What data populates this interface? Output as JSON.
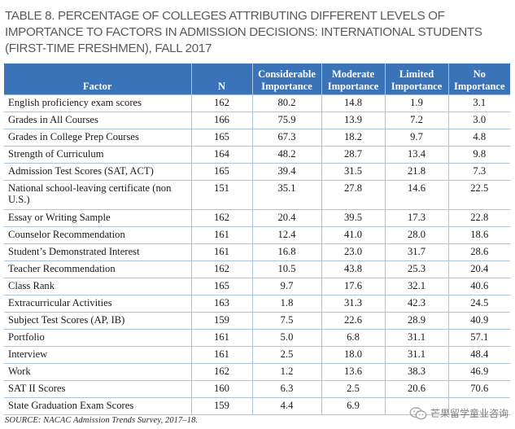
{
  "title": "TABLE 8. PERCENTAGE OF COLLEGES ATTRIBUTING DIFFERENT LEVELS OF IMPORTANCE TO FACTORS IN ADMISSION DECISIONS: INTERNATIONAL STUDENTS (FIRST-TIME FRESHMEN), FALL 2017",
  "colors": {
    "header_bg": "#3a73b8",
    "grid": "#a9c3e0"
  },
  "headers": {
    "factor": "Factor",
    "n": "N",
    "considerable": "Considerable Importance",
    "moderate": "Moderate Importance",
    "limited": "Limited Importance",
    "no": "No Importance"
  },
  "rows": [
    {
      "factor": "English proficiency exam scores",
      "n": "162",
      "considerable": "80.2",
      "moderate": "14.8",
      "limited": "1.9",
      "no": "3.1"
    },
    {
      "factor": "Grades in All Courses",
      "n": "166",
      "considerable": "75.9",
      "moderate": "13.9",
      "limited": "7.2",
      "no": "3.0"
    },
    {
      "factor": "Grades in College Prep Courses",
      "n": "165",
      "considerable": "67.3",
      "moderate": "18.2",
      "limited": "9.7",
      "no": "4.8"
    },
    {
      "factor": "Strength of Curriculum",
      "n": "164",
      "considerable": "48.2",
      "moderate": "28.7",
      "limited": "13.4",
      "no": "9.8"
    },
    {
      "factor": "Admission Test Scores (SAT, ACT)",
      "n": "165",
      "considerable": "39.4",
      "moderate": "31.5",
      "limited": "21.8",
      "no": "7.3"
    },
    {
      "factor": "National school-leaving certificate (non U.S.)",
      "n": "151",
      "considerable": "35.1",
      "moderate": "27.8",
      "limited": "14.6",
      "no": "22.5"
    },
    {
      "factor": "Essay or Writing Sample",
      "n": "162",
      "considerable": "20.4",
      "moderate": "39.5",
      "limited": "17.3",
      "no": "22.8"
    },
    {
      "factor": "Counselor Recommendation",
      "n": "161",
      "considerable": "12.4",
      "moderate": "41.0",
      "limited": "28.0",
      "no": "18.6"
    },
    {
      "factor": "Student’s Demonstrated Interest",
      "n": "161",
      "considerable": "16.8",
      "moderate": "23.0",
      "limited": "31.7",
      "no": "28.6"
    },
    {
      "factor": "Teacher Recommendation",
      "n": "162",
      "considerable": "10.5",
      "moderate": "43.8",
      "limited": "25.3",
      "no": "20.4"
    },
    {
      "factor": "Class Rank",
      "n": "165",
      "considerable": "9.7",
      "moderate": "17.6",
      "limited": "32.1",
      "no": "40.6"
    },
    {
      "factor": "Extracurricular Activities",
      "n": "163",
      "considerable": "1.8",
      "moderate": "31.3",
      "limited": "42.3",
      "no": "24.5"
    },
    {
      "factor": "Subject Test Scores (AP, IB)",
      "n": "159",
      "considerable": "7.5",
      "moderate": "22.6",
      "limited": "28.9",
      "no": "40.9"
    },
    {
      "factor": "Portfolio",
      "n": "161",
      "considerable": "5.0",
      "moderate": "6.8",
      "limited": "31.1",
      "no": "57.1"
    },
    {
      "factor": "Interview",
      "n": "161",
      "considerable": "2.5",
      "moderate": "18.0",
      "limited": "31.1",
      "no": "48.4"
    },
    {
      "factor": "Work",
      "n": "162",
      "considerable": "1.2",
      "moderate": "13.6",
      "limited": "38.3",
      "no": "46.9"
    },
    {
      "factor": "SAT II Scores",
      "n": "160",
      "considerable": "6.3",
      "moderate": "2.5",
      "limited": "20.6",
      "no": "70.6"
    },
    {
      "factor": "State Graduation Exam Scores",
      "n": "159",
      "considerable": "4.4",
      "moderate": "6.9",
      "limited": "",
      "no": ""
    }
  ],
  "source": "SOURCE: NACAC Admission Trends Survey, 2017–18.",
  "watermark": {
    "icon": "wechat-icon",
    "text": "芒果留学童业咨询"
  }
}
